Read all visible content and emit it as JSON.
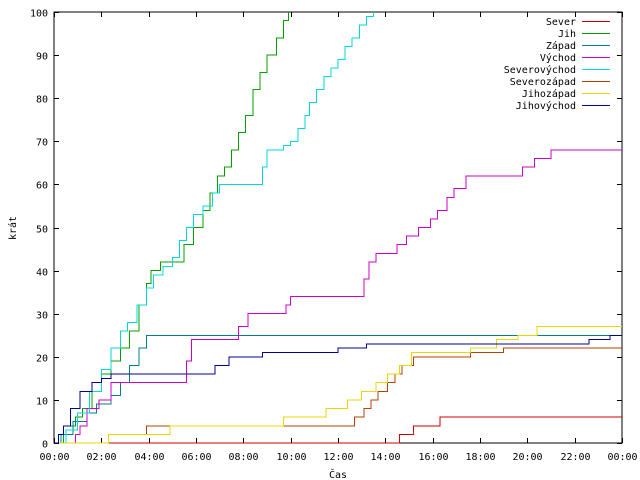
{
  "chart_data": {
    "type": "line",
    "step": true,
    "xlabel": "Čas",
    "ylabel": "krát",
    "xlim": [
      0,
      24
    ],
    "ylim": [
      0,
      100
    ],
    "grid": false,
    "legend_position": "top-right",
    "x_ticks": [
      {
        "value": 0,
        "label": "00:00"
      },
      {
        "value": 2,
        "label": "02:00"
      },
      {
        "value": 4,
        "label": "04:00"
      },
      {
        "value": 6,
        "label": "06:00"
      },
      {
        "value": 8,
        "label": "08:00"
      },
      {
        "value": 10,
        "label": "10:00"
      },
      {
        "value": 12,
        "label": "12:00"
      },
      {
        "value": 14,
        "label": "14:00"
      },
      {
        "value": 16,
        "label": "16:00"
      },
      {
        "value": 18,
        "label": "18:00"
      },
      {
        "value": 20,
        "label": "20:00"
      },
      {
        "value": 22,
        "label": "22:00"
      },
      {
        "value": 24,
        "label": "00:00"
      }
    ],
    "y_ticks": [
      {
        "value": 0,
        "label": "0"
      },
      {
        "value": 10,
        "label": "10"
      },
      {
        "value": 20,
        "label": "20"
      },
      {
        "value": 30,
        "label": "30"
      },
      {
        "value": 40,
        "label": "40"
      },
      {
        "value": 50,
        "label": "50"
      },
      {
        "value": 60,
        "label": "60"
      },
      {
        "value": 70,
        "label": "70"
      },
      {
        "value": 80,
        "label": "80"
      },
      {
        "value": 90,
        "label": "90"
      },
      {
        "value": 100,
        "label": "100"
      }
    ],
    "series": [
      {
        "name": "Sever",
        "color": "#cc0000",
        "points": [
          [
            0,
            0
          ],
          [
            14.4,
            0
          ],
          [
            14.6,
            2
          ],
          [
            15.2,
            4
          ],
          [
            16.3,
            6
          ],
          [
            24,
            6
          ]
        ]
      },
      {
        "name": "Jih",
        "color": "#00a000",
        "points": [
          [
            0,
            0
          ],
          [
            0.4,
            4
          ],
          [
            0.9,
            6
          ],
          [
            1.2,
            8
          ],
          [
            1.6,
            12
          ],
          [
            2.0,
            16
          ],
          [
            2.4,
            19
          ],
          [
            2.8,
            22
          ],
          [
            3.2,
            26
          ],
          [
            3.6,
            32
          ],
          [
            3.9,
            37
          ],
          [
            4.1,
            40
          ],
          [
            4.5,
            42
          ],
          [
            5.1,
            42
          ],
          [
            5.5,
            46
          ],
          [
            5.9,
            50
          ],
          [
            6.3,
            54
          ],
          [
            6.6,
            58
          ],
          [
            6.9,
            62
          ],
          [
            7.2,
            64
          ],
          [
            7.5,
            68
          ],
          [
            7.8,
            72
          ],
          [
            8.1,
            76
          ],
          [
            8.4,
            82
          ],
          [
            8.7,
            86
          ],
          [
            9.0,
            90
          ],
          [
            9.4,
            94
          ],
          [
            9.7,
            98
          ],
          [
            9.9,
            100
          ]
        ]
      },
      {
        "name": "Západ",
        "color": "#00808b",
        "points": [
          [
            0,
            0
          ],
          [
            0.3,
            2
          ],
          [
            0.8,
            5
          ],
          [
            1.4,
            7
          ],
          [
            1.8,
            9
          ],
          [
            2.4,
            11
          ],
          [
            2.8,
            14
          ],
          [
            3.2,
            18
          ],
          [
            3.6,
            22
          ],
          [
            3.9,
            25
          ],
          [
            24,
            25
          ]
        ]
      },
      {
        "name": "Východ",
        "color": "#cc00cc",
        "points": [
          [
            0,
            0
          ],
          [
            0.9,
            2
          ],
          [
            1.1,
            4
          ],
          [
            1.4,
            8
          ],
          [
            1.9,
            10
          ],
          [
            2.4,
            14
          ],
          [
            5.3,
            14
          ],
          [
            5.6,
            19
          ],
          [
            5.8,
            24
          ],
          [
            7.4,
            24
          ],
          [
            7.8,
            27
          ],
          [
            8.2,
            30
          ],
          [
            9.5,
            30
          ],
          [
            9.8,
            32
          ],
          [
            10.0,
            34
          ],
          [
            12.9,
            34
          ],
          [
            13.1,
            38
          ],
          [
            13.3,
            42
          ],
          [
            13.6,
            44
          ],
          [
            14.5,
            46
          ],
          [
            14.9,
            48
          ],
          [
            15.4,
            50
          ],
          [
            15.9,
            52
          ],
          [
            16.2,
            54
          ],
          [
            16.6,
            57
          ],
          [
            16.9,
            59
          ],
          [
            17.4,
            62
          ],
          [
            19.5,
            62
          ],
          [
            19.8,
            64
          ],
          [
            20.3,
            66
          ],
          [
            21.0,
            68
          ],
          [
            24,
            68
          ]
        ]
      },
      {
        "name": "Severovýchod",
        "color": "#00d8d8",
        "points": [
          [
            0,
            0
          ],
          [
            0.5,
            3
          ],
          [
            1.0,
            7
          ],
          [
            1.5,
            12
          ],
          [
            2.0,
            17
          ],
          [
            2.4,
            22
          ],
          [
            2.8,
            26
          ],
          [
            3.1,
            28
          ],
          [
            3.5,
            32
          ],
          [
            3.9,
            36
          ],
          [
            4.2,
            39
          ],
          [
            4.6,
            41
          ],
          [
            5.0,
            43
          ],
          [
            5.3,
            47
          ],
          [
            5.6,
            50
          ],
          [
            5.9,
            53
          ],
          [
            6.3,
            55
          ],
          [
            6.7,
            58
          ],
          [
            7.0,
            60
          ],
          [
            7.4,
            60
          ],
          [
            8.6,
            60
          ],
          [
            8.8,
            64
          ],
          [
            9.0,
            68
          ],
          [
            9.7,
            69
          ],
          [
            10.0,
            70
          ],
          [
            10.3,
            73
          ],
          [
            10.6,
            76
          ],
          [
            10.8,
            79
          ],
          [
            11.1,
            82
          ],
          [
            11.4,
            85
          ],
          [
            11.7,
            87
          ],
          [
            12.0,
            89
          ],
          [
            12.3,
            92
          ],
          [
            12.6,
            94
          ],
          [
            12.9,
            97
          ],
          [
            13.2,
            99
          ],
          [
            13.5,
            100
          ]
        ]
      },
      {
        "name": "Severozápad",
        "color": "#b84000",
        "points": [
          [
            0,
            0
          ],
          [
            2.1,
            0
          ],
          [
            2.3,
            2
          ],
          [
            3.7,
            2
          ],
          [
            3.9,
            4
          ],
          [
            6.0,
            4
          ],
          [
            12.4,
            4
          ],
          [
            12.7,
            6
          ],
          [
            13.1,
            8
          ],
          [
            13.4,
            10
          ],
          [
            13.7,
            12
          ],
          [
            14.1,
            14
          ],
          [
            14.4,
            16
          ],
          [
            14.7,
            18
          ],
          [
            15.2,
            20
          ],
          [
            17.0,
            20
          ],
          [
            17.6,
            21
          ],
          [
            18.5,
            21
          ],
          [
            19.0,
            22
          ],
          [
            24,
            22
          ]
        ]
      },
      {
        "name": "Jihozápad",
        "color": "#e8d800",
        "points": [
          [
            0,
            0
          ],
          [
            2.1,
            0
          ],
          [
            2.3,
            2
          ],
          [
            4.2,
            2
          ],
          [
            4.9,
            4
          ],
          [
            9.5,
            4
          ],
          [
            9.7,
            6
          ],
          [
            11.0,
            6
          ],
          [
            11.5,
            8
          ],
          [
            12.0,
            8
          ],
          [
            12.4,
            10
          ],
          [
            13.0,
            12
          ],
          [
            13.6,
            14
          ],
          [
            14.1,
            16
          ],
          [
            14.6,
            18
          ],
          [
            15.1,
            21
          ],
          [
            16.0,
            21
          ],
          [
            17.6,
            22
          ],
          [
            18.0,
            22
          ],
          [
            18.7,
            24
          ],
          [
            19.6,
            25
          ],
          [
            20.4,
            27
          ],
          [
            24,
            27
          ]
        ]
      },
      {
        "name": "Jihovýchod",
        "color": "#000099",
        "points": [
          [
            0,
            0
          ],
          [
            0.2,
            2
          ],
          [
            0.4,
            4
          ],
          [
            0.7,
            8
          ],
          [
            1.1,
            12
          ],
          [
            1.6,
            14
          ],
          [
            2.0,
            15
          ],
          [
            2.4,
            16
          ],
          [
            6.0,
            16
          ],
          [
            6.8,
            18
          ],
          [
            7.4,
            20
          ],
          [
            8.8,
            21
          ],
          [
            12.0,
            22
          ],
          [
            13.2,
            23
          ],
          [
            16.0,
            23
          ],
          [
            22.6,
            24
          ],
          [
            23.5,
            25
          ],
          [
            24,
            25
          ]
        ]
      }
    ]
  }
}
